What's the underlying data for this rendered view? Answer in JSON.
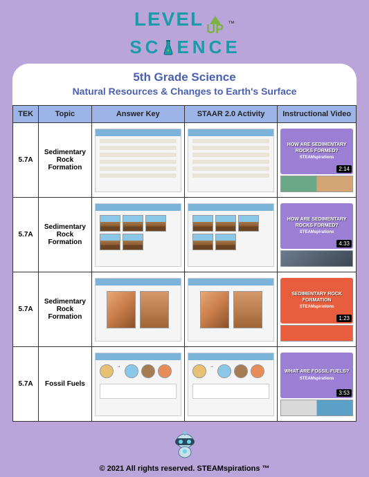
{
  "logo": {
    "level": "LEVEL",
    "up": "UP",
    "science": "SCIENCE",
    "tm": "™"
  },
  "header": {
    "title": "5th Grade Science",
    "subtitle": "Natural Resources & Changes to Earth's Surface"
  },
  "columns": {
    "tek": "TEK",
    "topic": "Topic",
    "answer_key": "Answer Key",
    "activity": "STAAR 2.0 Activity",
    "video": "Instructional Video"
  },
  "rows": [
    {
      "tek": "5.7A",
      "topic": "Sedimentary Rock Formation",
      "video_title": "HOW ARE SEDIMENTARY ROCKS FORMED?",
      "video_bg": "#9b7fd4",
      "video_brand": "STEAMspirations",
      "video_time": "2:14",
      "extra_bg": "linear-gradient(to right, #6ba888 50%, #d4a574 50%)",
      "thumb_style": "lines"
    },
    {
      "tek": "5.7A",
      "topic": "Sedimentary Rock Formation",
      "video_title": "HOW ARE SEDIMENTARY ROCKS FORMED?",
      "video_bg": "#9b7fd4",
      "video_brand": "STEAMspirations",
      "video_time": "4:33",
      "extra_bg": "linear-gradient(135deg, #6b7a8f, #3d4852)",
      "thumb_style": "diagrams"
    },
    {
      "tek": "5.7A",
      "topic": "Sedimentary Rock Formation",
      "video_title": "SEDIMENTARY ROCK FORMATION",
      "video_bg": "#e85d3d",
      "video_brand": "STEAMspirations",
      "video_time": "1:23",
      "extra_bg": "#e85d3d",
      "thumb_style": "photos"
    },
    {
      "tek": "5.7A",
      "topic": "Fossil Fuels",
      "video_title": "WHAT ARE FOSSIL FUELS?",
      "video_bg": "#9b7fd4",
      "video_brand": "STEAMspirations",
      "video_time": "3:53",
      "extra_bg": "linear-gradient(to right, #d9d9d9 50%, #5aa0c7 50%)",
      "thumb_style": "fossil"
    }
  ],
  "footer": "© 2021 All rights reserved. STEAMspirations ™",
  "colors": {
    "page_bg": "#b9a5d9",
    "panel_bg": "#ffffff",
    "header_text": "#4a5fb0",
    "th_bg": "#9db4e8",
    "border": "#333333",
    "logo_teal": "#1a9ba8",
    "logo_green": "#7cb342"
  }
}
